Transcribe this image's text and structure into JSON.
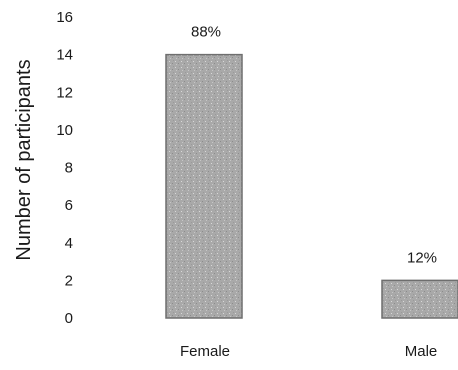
{
  "chart_data": {
    "type": "bar",
    "title": "",
    "xlabel": "",
    "ylabel": "Number of participants",
    "ylim": [
      0,
      16
    ],
    "yticks": [
      0,
      2,
      4,
      6,
      8,
      10,
      12,
      14,
      16
    ],
    "categories": [
      "Female",
      "Male"
    ],
    "values": [
      14,
      2
    ],
    "data_labels": [
      "88%",
      "12%"
    ],
    "grid": false,
    "legend": "none",
    "bar_color": "#a8a8a8",
    "bar_edge_color": "#6e6e6e"
  }
}
